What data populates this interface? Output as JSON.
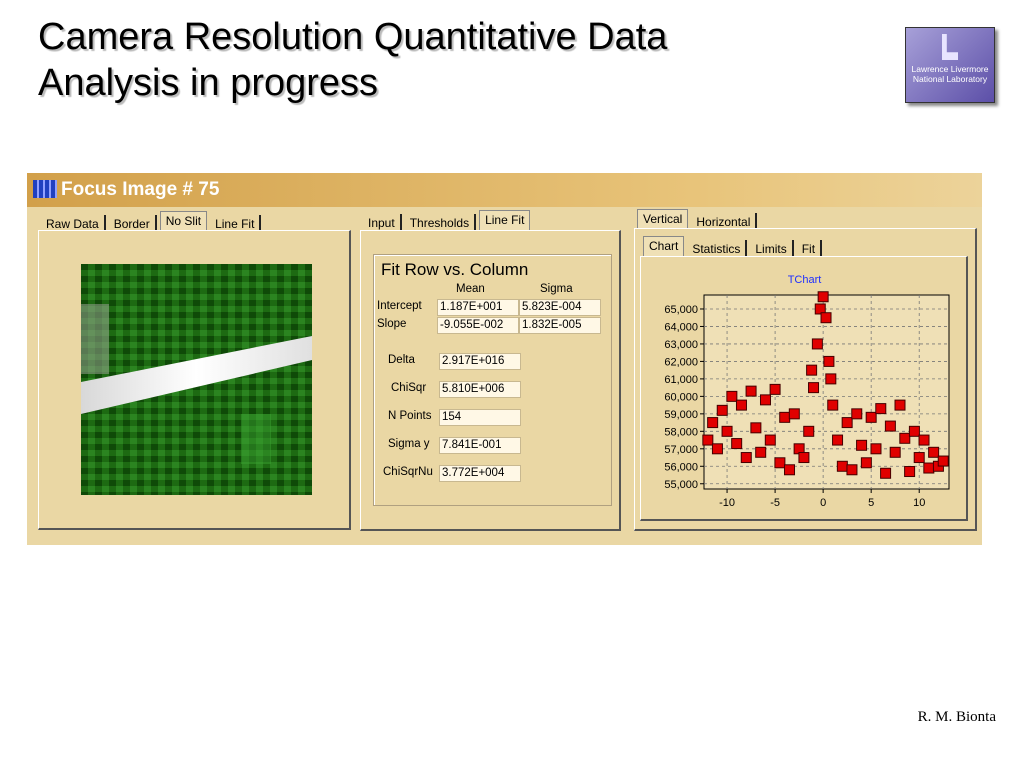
{
  "slide": {
    "title_lines": [
      "Camera Resolution Quantitative Data",
      "Analysis in progress"
    ],
    "logo_lines": [
      "Lawrence Livermore",
      "National Laboratory"
    ],
    "author": "R. M. Bionta"
  },
  "window": {
    "title": "Focus Image # 75",
    "left_tabs": [
      "Raw Data",
      "Border",
      "No Slit",
      "Line Fit"
    ],
    "middle_tabs": [
      "Input",
      "Thresholds",
      "Line Fit"
    ],
    "right_tabs": [
      "Vertical",
      "Horizontal"
    ],
    "chart_tabs": [
      "Chart",
      "Statistics",
      "Limits",
      "Fit"
    ],
    "fit": {
      "title": "Fit Row vs. Column",
      "columns": [
        "Mean",
        "Sigma"
      ],
      "rows": [
        {
          "label": "Intercept",
          "values": [
            "1.187E+001",
            "5.823E-004"
          ]
        },
        {
          "label": "Slope",
          "values": [
            "-9.055E-002",
            "1.832E-005"
          ]
        }
      ],
      "stats": [
        {
          "label": "Delta",
          "value": "2.917E+016"
        },
        {
          "label": "ChiSqr",
          "value": "5.810E+006"
        },
        {
          "label": "N Points",
          "value": "154"
        },
        {
          "label": "Sigma y",
          "value": "7.841E-001"
        },
        {
          "label": "ChiSqrNu",
          "value": "3.772E+004"
        }
      ]
    }
  },
  "chart_data": {
    "type": "scatter",
    "title": "TChart",
    "color": "#e00000",
    "xlim": [
      -12.4,
      13.1
    ],
    "ylim": [
      54700,
      65800
    ],
    "xticks": [
      -10,
      -5,
      0,
      5,
      10
    ],
    "yticks": [
      {
        "value": 55000,
        "label": "55,000"
      },
      {
        "value": 56000,
        "label": "56,000"
      },
      {
        "value": 57000,
        "label": "57,000"
      },
      {
        "value": 58000,
        "label": "58,000"
      },
      {
        "value": 59000,
        "label": "59,000"
      },
      {
        "value": 60000,
        "label": "60,000"
      },
      {
        "value": 61000,
        "label": "61,000"
      },
      {
        "value": 62000,
        "label": "62,000"
      },
      {
        "value": 63000,
        "label": "63,000"
      },
      {
        "value": 64000,
        "label": "64,000"
      },
      {
        "value": 65000,
        "label": "65,000"
      }
    ],
    "grid": true,
    "x": [
      -12,
      -11.5,
      -11,
      -10.5,
      -10,
      -9.5,
      -9,
      -8.5,
      -8,
      -7.5,
      -7,
      -6.5,
      -6,
      -5.5,
      -5,
      -4.5,
      -4,
      -3.5,
      -3,
      -2.5,
      -2,
      -1.5,
      -1.2,
      -1,
      -0.6,
      -0.3,
      0,
      0.3,
      0.6,
      0.8,
      1,
      1.5,
      2,
      2.5,
      3,
      3.5,
      4,
      4.5,
      5,
      5.5,
      6,
      6.5,
      7,
      7.5,
      8,
      8.5,
      9,
      9.5,
      10,
      10.5,
      11,
      11.5,
      12,
      12.5
    ],
    "values": [
      57500,
      58500,
      57000,
      59200,
      58000,
      60000,
      57300,
      59500,
      56500,
      60300,
      58200,
      56800,
      59800,
      57500,
      60400,
      56200,
      58800,
      55800,
      59000,
      57000,
      56500,
      58000,
      61500,
      60500,
      63000,
      65000,
      65700,
      64500,
      62000,
      61000,
      59500,
      57500,
      56000,
      58500,
      55800,
      59000,
      57200,
      56200,
      58800,
      57000,
      59300,
      55600,
      58300,
      56800,
      59500,
      57600,
      55700,
      58000,
      56500,
      57500,
      55900,
      56800,
      56000,
      56300
    ]
  }
}
